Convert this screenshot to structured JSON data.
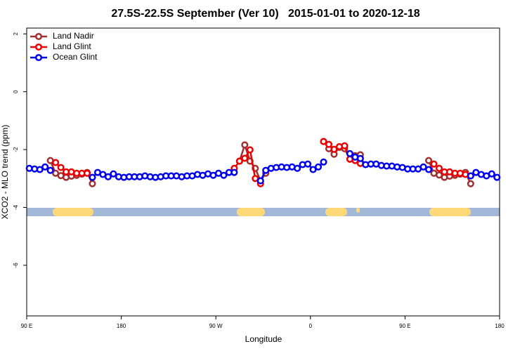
{
  "chart_data": {
    "type": "line",
    "title": "27.5S-22.5S September (Ver 10)   2015-01-01 to 2020-12-18",
    "x_label": "Longitude",
    "y_label": "XCO2 - MLO trend (ppm)",
    "x": [
      92.5,
      97.5,
      102.5,
      107.5,
      112.5,
      117.5,
      122.5,
      127.5,
      132.5,
      137.5,
      142.5,
      147.5,
      152.5,
      157.5,
      162.5,
      167.5,
      172.5,
      177.5,
      182.5,
      187.5,
      192.5,
      197.5,
      202.5,
      207.5,
      212.5,
      217.5,
      222.5,
      227.5,
      232.5,
      237.5,
      242.5,
      247.5,
      252.5,
      257.5,
      262.5,
      267.5,
      272.5,
      277.5,
      282.5,
      287.5,
      292.5,
      297.5,
      302.5,
      307.5,
      312.5,
      317.5,
      322.5,
      327.5,
      332.5,
      337.5,
      342.5,
      347.5,
      352.5,
      357.5,
      362.5,
      367.5,
      372.5,
      377.5,
      382.5,
      387.5,
      392.5,
      397.5,
      402.5,
      407.5,
      412.5,
      417.5,
      422.5,
      427.5,
      432.5,
      437.5,
      442.5,
      447.5,
      452.5,
      457.5,
      462.5,
      467.5,
      472.5,
      477.5,
      482.5,
      487.5,
      492.5,
      497.5,
      502.5,
      507.5,
      512.5,
      517.5,
      522.5,
      527.5,
      532.5,
      537.5
    ],
    "series": [
      {
        "name": "Land Nadir",
        "color": "#a03030",
        "values": [
          null,
          null,
          null,
          null,
          -2.38,
          -2.82,
          -2.9,
          -2.96,
          -2.92,
          -2.89,
          -2.85,
          -2.79,
          -3.18,
          null,
          null,
          null,
          null,
          null,
          null,
          null,
          null,
          null,
          null,
          null,
          null,
          null,
          null,
          null,
          null,
          null,
          null,
          null,
          null,
          null,
          null,
          null,
          null,
          null,
          null,
          null,
          -2.4,
          -1.84,
          -2.4,
          -2.65,
          -3.08,
          -2.82,
          null,
          null,
          null,
          null,
          null,
          null,
          null,
          null,
          null,
          null,
          -1.72,
          -1.97,
          -2.16,
          -1.92,
          -1.97,
          -2.33,
          -2.21,
          -2.18,
          null,
          null,
          null,
          null,
          null,
          null,
          null,
          null,
          null,
          null,
          null,
          null,
          -2.38,
          -2.82,
          -2.88,
          -2.96,
          -2.92,
          -2.89,
          -2.85,
          -2.79,
          -3.18,
          null,
          null,
          null,
          null,
          null
        ]
      },
      {
        "name": "Land Glint",
        "color": "#ee0000",
        "values": [
          null,
          null,
          null,
          null,
          null,
          -2.45,
          -2.62,
          -2.77,
          -2.77,
          -2.82,
          -2.82,
          -2.82,
          null,
          null,
          null,
          null,
          null,
          null,
          null,
          null,
          null,
          null,
          null,
          null,
          null,
          null,
          null,
          null,
          null,
          null,
          null,
          null,
          null,
          null,
          null,
          null,
          null,
          null,
          null,
          -2.65,
          -2.4,
          -2.3,
          -2.01,
          -3.0,
          -3.18,
          null,
          null,
          null,
          null,
          null,
          null,
          null,
          null,
          null,
          null,
          null,
          -1.72,
          -1.82,
          -1.99,
          -1.9,
          -1.87,
          -2.33,
          -2.38,
          -2.48,
          null,
          null,
          null,
          null,
          null,
          null,
          null,
          null,
          null,
          null,
          null,
          null,
          null,
          -2.5,
          -2.65,
          -2.77,
          -2.77,
          -2.82,
          -2.82,
          -2.86,
          null,
          null,
          null,
          null,
          null,
          null
        ]
      },
      {
        "name": "Ocean Glint",
        "color": "#0000ee",
        "values": [
          -2.65,
          -2.67,
          -2.69,
          -2.6,
          -2.72,
          null,
          null,
          null,
          null,
          null,
          null,
          null,
          -2.96,
          -2.79,
          -2.86,
          -2.94,
          -2.84,
          -2.94,
          -2.96,
          -2.94,
          -2.94,
          -2.94,
          -2.91,
          -2.94,
          -2.96,
          -2.94,
          -2.91,
          -2.91,
          -2.91,
          -2.94,
          -2.91,
          -2.91,
          -2.86,
          -2.89,
          -2.84,
          -2.89,
          -2.82,
          -2.89,
          -2.79,
          -2.79,
          null,
          null,
          null,
          null,
          -3.08,
          -2.72,
          -2.65,
          -2.62,
          -2.6,
          -2.62,
          -2.6,
          -2.65,
          -2.52,
          -2.5,
          -2.69,
          -2.6,
          -2.43,
          null,
          null,
          null,
          null,
          -2.14,
          -2.26,
          -2.31,
          -2.52,
          -2.5,
          -2.5,
          -2.55,
          -2.57,
          -2.57,
          -2.6,
          -2.62,
          -2.67,
          -2.67,
          -2.67,
          -2.6,
          -2.69,
          null,
          null,
          null,
          null,
          null,
          null,
          null,
          -2.91,
          -2.79,
          -2.86,
          -2.91,
          -2.84,
          -2.96
        ]
      }
    ],
    "xlim": [
      90,
      540
    ],
    "xticks": [
      {
        "value": 90,
        "label": "90 E"
      },
      180,
      {
        "value": 270,
        "label": "90 W"
      },
      {
        "value": 360,
        "label": "0"
      },
      {
        "value": 450,
        "label": "90 E"
      },
      180
    ],
    "ylim": [
      -7.75,
      2.2
    ],
    "yticks": [
      2,
      0,
      -2,
      -4,
      -6
    ],
    "legend": "top-left"
  }
}
